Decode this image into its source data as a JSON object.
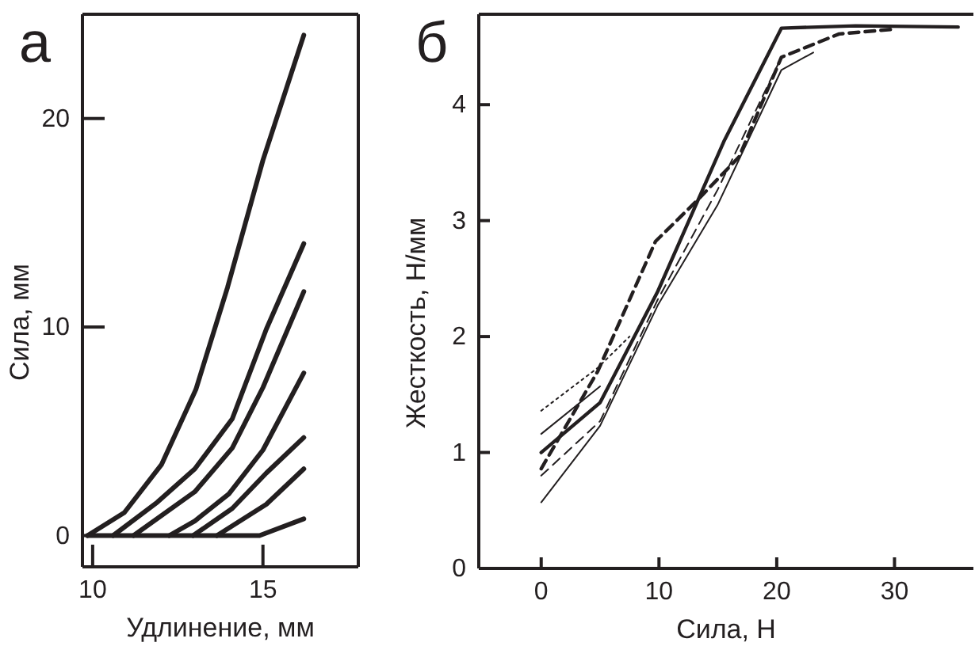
{
  "chart_data": [
    {
      "type": "line",
      "title": "а",
      "xlabel": "Удлинение, мм",
      "ylabel": "Сила, мм",
      "xlim": [
        9.7,
        17.8
      ],
      "ylim": [
        -1.5,
        25
      ],
      "xticks": [
        10,
        15
      ],
      "yticks": [
        0,
        10,
        20
      ],
      "grid": false,
      "marker": "none",
      "line_style": "solid",
      "series": [
        {
          "color": "#231f20",
          "x": [
            9.85,
            10.93,
            12.02,
            13.03,
            13.96,
            15.0,
            16.2
          ],
          "values": [
            0,
            1.1,
            3.4,
            7.0,
            11.9,
            18.0,
            24.0
          ]
        },
        {
          "color": "#231f20",
          "x": [
            10.6,
            11.9,
            13.0,
            14.1,
            15.1,
            16.2
          ],
          "values": [
            0,
            1.6,
            3.2,
            5.6,
            9.9,
            14.0
          ]
        },
        {
          "color": "#231f20",
          "x": [
            11.2,
            13.0,
            14.1,
            15.0,
            16.2
          ],
          "values": [
            0,
            2.1,
            4.2,
            7.1,
            11.7
          ]
        },
        {
          "color": "#231f20",
          "x": [
            12.25,
            13.0,
            14.0,
            15.0,
            16.2
          ],
          "values": [
            0,
            0.7,
            2.0,
            4.1,
            7.8
          ]
        },
        {
          "color": "#231f20",
          "x": [
            12.95,
            14.1,
            15.1,
            16.2
          ],
          "values": [
            0,
            1.3,
            3.0,
            4.7
          ]
        },
        {
          "color": "#231f20",
          "x": [
            13.65,
            15.1,
            16.2
          ],
          "values": [
            0,
            1.5,
            3.2
          ]
        },
        {
          "color": "#231f20",
          "x": [
            9.85,
            14.9,
            16.2
          ],
          "values": [
            0,
            0,
            0.8
          ]
        }
      ]
    },
    {
      "type": "line",
      "title": "б",
      "xlabel": "Сила, Н",
      "ylabel": "Жесткость, Н/мм",
      "xlim": [
        -5.3,
        36.7
      ],
      "ylim": [
        0,
        4.78
      ],
      "xticks": [
        0,
        10,
        20,
        30
      ],
      "yticks": [
        0,
        1,
        2,
        3,
        4
      ],
      "grid": false,
      "marker": "none",
      "series": [
        {
          "color": "#231f20",
          "line_style": "solid",
          "x": [
            0,
            5,
            9.9,
            15.5,
            20.4,
            26.7,
            35.4
          ],
          "values": [
            1.0,
            1.43,
            2.39,
            3.68,
            4.66,
            4.68,
            4.67
          ]
        },
        {
          "color": "#231f20",
          "line_style": "dashed",
          "x": [
            0,
            4.8,
            9.7,
            13.3,
            16.8,
            20.4,
            25.3,
            29.8
          ],
          "values": [
            0.86,
            1.7,
            2.82,
            3.18,
            3.55,
            4.41,
            4.61,
            4.65
          ]
        },
        {
          "color": "#231f20",
          "line_style": "solid",
          "x": [
            0,
            5,
            9.9,
            15,
            20.4,
            23.1
          ],
          "values": [
            0.57,
            1.23,
            2.27,
            3.14,
            4.3,
            4.45
          ]
        },
        {
          "color": "#231f20",
          "line_style": "dashed",
          "x": [
            0,
            5,
            9.9,
            15,
            20.4
          ],
          "values": [
            0.8,
            1.27,
            2.32,
            3.27,
            4.41
          ]
        },
        {
          "color": "#231f20",
          "line_style": "dotted",
          "x": [
            0,
            4.8,
            7.5
          ],
          "values": [
            1.36,
            1.73,
            2.0
          ]
        },
        {
          "color": "#231f20",
          "line_style": "solid",
          "x": [
            0,
            5
          ],
          "values": [
            1.16,
            1.57
          ]
        }
      ]
    }
  ]
}
